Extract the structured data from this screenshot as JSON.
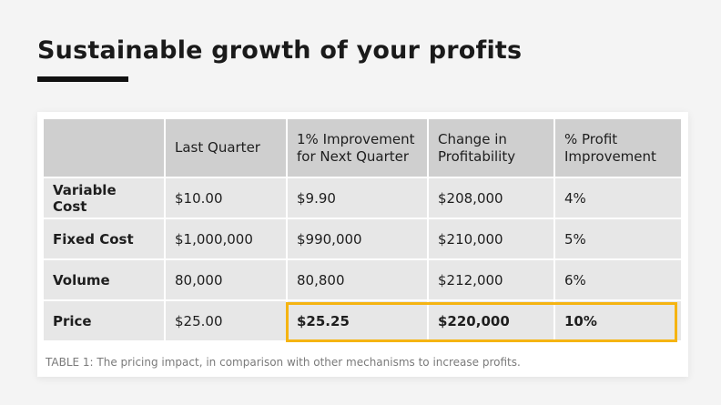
{
  "heading": "Sustainable growth of your profits",
  "table": {
    "headers": [
      "",
      "Last Quarter",
      "1% Improvement for Next Quarter",
      "Change in Profitability",
      "% Profit Improvement"
    ],
    "rows": [
      [
        "Variable Cost",
        "$10.00",
        "$9.90",
        "$208,000",
        "4%"
      ],
      [
        "Fixed Cost",
        "$1,000,000",
        "$990,000",
        "$210,000",
        "5%"
      ],
      [
        "Volume",
        "80,000",
        "80,800",
        "$212,000",
        "6%"
      ],
      [
        "Price",
        "$25.00",
        "$25.25",
        "$220,000",
        "10%"
      ]
    ],
    "highlighted_row": 3
  },
  "caption": {
    "prefix": "TABLE 1:",
    "text": " The pricing impact, in comparison with other mechanisms to increase profits."
  },
  "colors": {
    "highlight": "#f5b412",
    "header_bg": "#cfcfcf",
    "cell_bg": "#e7e7e7"
  }
}
